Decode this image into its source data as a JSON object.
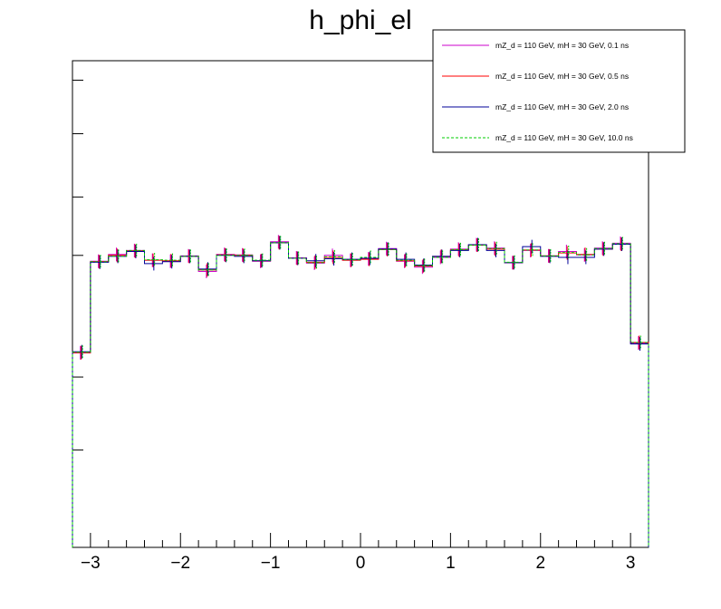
{
  "chart_data": {
    "type": "line",
    "title": "h_phi_el",
    "xlabel": "",
    "ylabel": "",
    "xlim": [
      -3.2,
      3.2
    ],
    "ylim": [
      0,
      100
    ],
    "x_ticks": [
      -3,
      -2,
      -1,
      0,
      1,
      2,
      3
    ],
    "x_tick_labels": [
      "−3",
      "−2",
      "−1",
      "0",
      "1",
      "2",
      "3"
    ],
    "y_major_ticks": [
      20,
      35,
      60,
      72,
      85,
      96
    ],
    "legend_position": "top-right",
    "bin_edges": [
      -3.2,
      -3.0,
      -2.8,
      -2.6,
      -2.4,
      -2.2,
      -2.0,
      -1.8,
      -1.6,
      -1.4,
      -1.2,
      -1.0,
      -0.8,
      -0.6,
      -0.4,
      -0.2,
      0.0,
      0.2,
      0.4,
      0.6,
      0.8,
      1.0,
      1.2,
      1.4,
      1.6,
      1.8,
      2.0,
      2.2,
      2.4,
      2.6,
      2.8,
      3.0,
      3.2
    ],
    "series": [
      {
        "name": "mZ_d = 110 GeV, mH = 30 GeV, 0.1 ns",
        "color": "#cc00cc",
        "dash": "solid",
        "values": [
          40.0,
          58.8,
          60.2,
          61.0,
          59.0,
          58.8,
          59.9,
          56.7,
          60.2,
          60.1,
          58.8,
          62.8,
          59.5,
          58.4,
          60.0,
          59.0,
          59.3,
          61.4,
          58.8,
          57.6,
          59.6,
          61.3,
          62.2,
          61.5,
          58.5,
          61.0,
          59.9,
          60.8,
          60.1,
          61.5,
          62.5,
          42.0
        ],
        "errors": [
          1.4,
          1.4,
          1.4,
          1.4,
          1.4,
          1.4,
          1.4,
          1.4,
          1.4,
          1.4,
          1.4,
          1.4,
          1.4,
          1.4,
          1.4,
          1.4,
          1.4,
          1.4,
          1.4,
          1.4,
          1.4,
          1.4,
          1.4,
          1.4,
          1.4,
          1.4,
          1.4,
          1.4,
          1.4,
          1.4,
          1.4,
          1.4
        ]
      },
      {
        "name": "mZ_d = 110 GeV, mH = 30 GeV, 0.5 ns",
        "color": "#ff0000",
        "dash": "solid",
        "values": [
          40.0,
          58.7,
          60.0,
          60.9,
          59.0,
          58.9,
          59.8,
          57.0,
          60.1,
          60.0,
          58.9,
          62.6,
          59.4,
          58.6,
          59.6,
          59.0,
          59.2,
          61.2,
          58.9,
          57.8,
          59.8,
          61.1,
          62.1,
          61.3,
          58.5,
          61.1,
          59.9,
          60.5,
          60.2,
          61.3,
          62.3,
          42.1
        ],
        "errors": [
          1.4,
          1.4,
          1.4,
          1.4,
          1.4,
          1.4,
          1.4,
          1.4,
          1.4,
          1.4,
          1.4,
          1.4,
          1.4,
          1.4,
          1.4,
          1.4,
          1.4,
          1.4,
          1.4,
          1.4,
          1.4,
          1.4,
          1.4,
          1.4,
          1.4,
          1.4,
          1.4,
          1.4,
          1.4,
          1.4,
          1.4,
          1.4
        ]
      },
      {
        "name": "mZ_d = 110 GeV, mH = 30 GeV, 2.0 ns",
        "color": "#000099",
        "dash": "solid",
        "values": [
          40.2,
          58.6,
          59.8,
          60.8,
          58.3,
          58.7,
          59.8,
          57.2,
          60.0,
          59.8,
          58.9,
          62.6,
          59.4,
          58.9,
          59.3,
          59.2,
          59.4,
          61.3,
          59.2,
          58.0,
          59.8,
          61.0,
          62.2,
          61.0,
          58.5,
          61.8,
          59.8,
          59.6,
          59.6,
          61.3,
          62.3,
          41.8
        ],
        "errors": [
          1.4,
          1.4,
          1.4,
          1.4,
          1.4,
          1.4,
          1.4,
          1.4,
          1.4,
          1.4,
          1.4,
          1.4,
          1.4,
          1.4,
          1.4,
          1.4,
          1.4,
          1.4,
          1.4,
          1.4,
          1.4,
          1.4,
          1.4,
          1.4,
          1.4,
          1.4,
          1.4,
          1.4,
          1.4,
          1.4,
          1.4,
          1.4
        ]
      },
      {
        "name": "mZ_d = 110 GeV, mH = 30 GeV, 10.0 ns",
        "color": "#00cc00",
        "dash": "dashed",
        "values": [
          40.1,
          58.7,
          59.8,
          61.0,
          59.1,
          59.0,
          59.8,
          57.0,
          60.0,
          60.0,
          59.0,
          62.6,
          59.4,
          58.5,
          59.7,
          59.1,
          59.6,
          61.2,
          59.0,
          57.9,
          59.6,
          61.2,
          62.1,
          61.4,
          58.6,
          61.1,
          59.9,
          60.6,
          60.1,
          61.4,
          62.4,
          42.1
        ],
        "errors": [
          1.4,
          1.4,
          1.4,
          1.4,
          1.4,
          1.4,
          1.4,
          1.4,
          1.4,
          1.4,
          1.4,
          1.4,
          1.4,
          1.4,
          1.4,
          1.4,
          1.4,
          1.4,
          1.4,
          1.4,
          1.4,
          1.4,
          1.4,
          1.4,
          1.4,
          1.4,
          1.4,
          1.4,
          1.4,
          1.4,
          1.4,
          1.4
        ]
      }
    ]
  }
}
